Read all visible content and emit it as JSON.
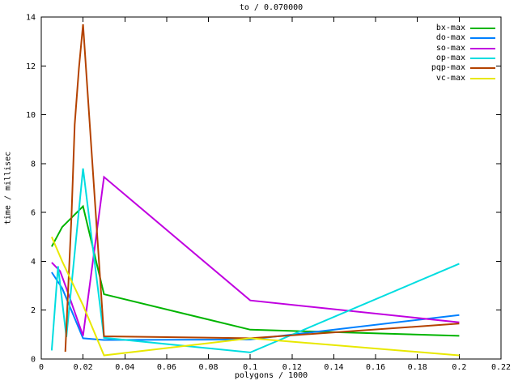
{
  "window": {
    "background": "#ffffff",
    "text_color": "#000000"
  },
  "chart_data": {
    "type": "line",
    "title": "to / 0.070000",
    "xlabel": "polygons / 1000",
    "ylabel": "time / millisec",
    "xlim": [
      0,
      0.22
    ],
    "ylim": [
      0,
      14
    ],
    "x_ticks": [
      0,
      0.02,
      0.04,
      0.06,
      0.08,
      0.1,
      0.12,
      0.14,
      0.16,
      0.18,
      0.2,
      0.22
    ],
    "y_ticks": [
      0,
      2,
      4,
      6,
      8,
      10,
      12,
      14
    ],
    "grid": false,
    "legend_position": "top-right-inside",
    "axis_color": "#000000",
    "series": [
      {
        "name": "bx-max",
        "color": "#00b400",
        "points": [
          [
            0.005,
            4.6
          ],
          [
            0.01,
            5.4
          ],
          [
            0.02,
            6.25
          ],
          [
            0.03,
            2.65
          ],
          [
            0.1,
            1.2
          ],
          [
            0.2,
            0.95
          ]
        ]
      },
      {
        "name": "do-max",
        "color": "#0080ff",
        "points": [
          [
            0.005,
            3.55
          ],
          [
            0.01,
            2.9
          ],
          [
            0.02,
            0.85
          ],
          [
            0.03,
            0.78
          ],
          [
            0.1,
            0.8
          ],
          [
            0.2,
            1.8
          ]
        ]
      },
      {
        "name": "so-max",
        "color": "#c000e0",
        "points": [
          [
            0.005,
            3.95
          ],
          [
            0.009,
            3.6
          ],
          [
            0.012,
            2.9
          ],
          [
            0.02,
            0.95
          ],
          [
            0.03,
            7.45
          ],
          [
            0.1,
            2.4
          ],
          [
            0.2,
            1.5
          ]
        ]
      },
      {
        "name": "op-max",
        "color": "#00dde0",
        "points": [
          [
            0.005,
            0.35
          ],
          [
            0.008,
            3.8
          ],
          [
            0.012,
            0.9
          ],
          [
            0.02,
            7.8
          ],
          [
            0.03,
            0.87
          ],
          [
            0.1,
            0.27
          ],
          [
            0.2,
            3.9
          ]
        ]
      },
      {
        "name": "pqp-max",
        "color": "#b44200",
        "points": [
          [
            0.0115,
            0.3
          ],
          [
            0.0125,
            2.2
          ],
          [
            0.0145,
            5.9
          ],
          [
            0.016,
            9.6
          ],
          [
            0.018,
            11.9
          ],
          [
            0.02,
            13.7
          ],
          [
            0.03,
            0.93
          ],
          [
            0.1,
            0.85
          ],
          [
            0.2,
            1.45
          ]
        ]
      },
      {
        "name": "vc-max",
        "color": "#e8e800",
        "points": [
          [
            0.005,
            5.0
          ],
          [
            0.01,
            4.0
          ],
          [
            0.02,
            2.2
          ],
          [
            0.03,
            0.15
          ],
          [
            0.1,
            0.85
          ],
          [
            0.2,
            0.15
          ]
        ]
      }
    ]
  }
}
